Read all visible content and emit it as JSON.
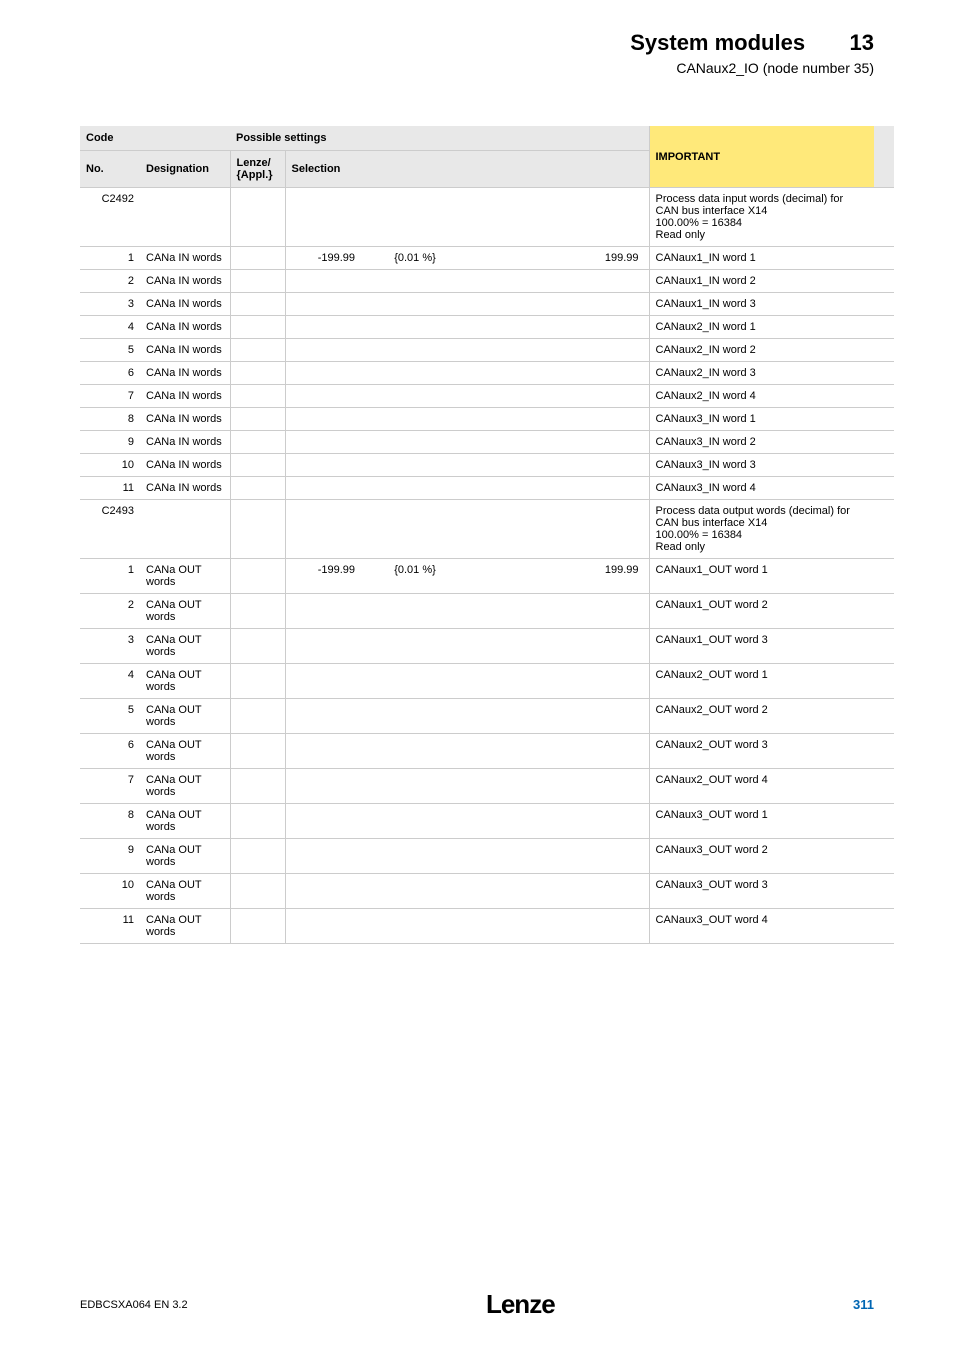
{
  "header": {
    "title": "System modules",
    "section_num": "13",
    "subtitle": "CANaux2_IO (node number 35)"
  },
  "table": {
    "headers": {
      "code": "Code",
      "no": "No.",
      "designation": "Designation",
      "possible": "Possible settings",
      "lenze": "Lenze/\n{Appl.}",
      "selection": "Selection",
      "important": "IMPORTANT"
    },
    "rows": [
      {
        "no": "C2492",
        "desig": "",
        "lenze": "",
        "sel": [
          "",
          "",
          ""
        ],
        "imp": "Process data input words (decimal) for CAN bus interface X14\n100.00% = 16384\nRead only",
        "heavy": true
      },
      {
        "no": "1",
        "desig": "CANa IN words",
        "lenze": "",
        "sel": [
          "-199.99",
          "{0.01 %}",
          "199.99"
        ],
        "imp": "CANaux1_IN word 1"
      },
      {
        "no": "2",
        "desig": "CANa IN words",
        "lenze": "",
        "sel": [
          "",
          "",
          ""
        ],
        "imp": "CANaux1_IN word 2"
      },
      {
        "no": "3",
        "desig": "CANa IN words",
        "lenze": "",
        "sel": [
          "",
          "",
          ""
        ],
        "imp": "CANaux1_IN word 3"
      },
      {
        "no": "4",
        "desig": "CANa IN words",
        "lenze": "",
        "sel": [
          "",
          "",
          ""
        ],
        "imp": "CANaux2_IN word 1"
      },
      {
        "no": "5",
        "desig": "CANa IN words",
        "lenze": "",
        "sel": [
          "",
          "",
          ""
        ],
        "imp": "CANaux2_IN word 2"
      },
      {
        "no": "6",
        "desig": "CANa IN words",
        "lenze": "",
        "sel": [
          "",
          "",
          ""
        ],
        "imp": "CANaux2_IN word 3"
      },
      {
        "no": "7",
        "desig": "CANa IN words",
        "lenze": "",
        "sel": [
          "",
          "",
          ""
        ],
        "imp": "CANaux2_IN word 4"
      },
      {
        "no": "8",
        "desig": "CANa IN words",
        "lenze": "",
        "sel": [
          "",
          "",
          ""
        ],
        "imp": "CANaux3_IN word 1"
      },
      {
        "no": "9",
        "desig": "CANa IN words",
        "lenze": "",
        "sel": [
          "",
          "",
          ""
        ],
        "imp": "CANaux3_IN word 2"
      },
      {
        "no": "10",
        "desig": "CANa IN words",
        "lenze": "",
        "sel": [
          "",
          "",
          ""
        ],
        "imp": "CANaux3_IN word 3"
      },
      {
        "no": "11",
        "desig": "CANa IN words",
        "lenze": "",
        "sel": [
          "",
          "",
          ""
        ],
        "imp": "CANaux3_IN word 4"
      },
      {
        "no": "C2493",
        "desig": "",
        "lenze": "",
        "sel": [
          "",
          "",
          ""
        ],
        "imp": "Process data output words (decimal) for CAN bus interface X14\n100.00% = 16384\nRead only",
        "heavy": true
      },
      {
        "no": "1",
        "desig": "CANa OUT words",
        "lenze": "",
        "sel": [
          "-199.99",
          "{0.01 %}",
          "199.99"
        ],
        "imp": "CANaux1_OUT word 1"
      },
      {
        "no": "2",
        "desig": "CANa OUT words",
        "lenze": "",
        "sel": [
          "",
          "",
          ""
        ],
        "imp": "CANaux1_OUT word 2"
      },
      {
        "no": "3",
        "desig": "CANa OUT words",
        "lenze": "",
        "sel": [
          "",
          "",
          ""
        ],
        "imp": "CANaux1_OUT word 3"
      },
      {
        "no": "4",
        "desig": "CANa OUT words",
        "lenze": "",
        "sel": [
          "",
          "",
          ""
        ],
        "imp": "CANaux2_OUT word 1"
      },
      {
        "no": "5",
        "desig": "CANa OUT words",
        "lenze": "",
        "sel": [
          "",
          "",
          ""
        ],
        "imp": "CANaux2_OUT word 2"
      },
      {
        "no": "6",
        "desig": "CANa OUT words",
        "lenze": "",
        "sel": [
          "",
          "",
          ""
        ],
        "imp": "CANaux2_OUT word 3"
      },
      {
        "no": "7",
        "desig": "CANa OUT words",
        "lenze": "",
        "sel": [
          "",
          "",
          ""
        ],
        "imp": "CANaux2_OUT word 4"
      },
      {
        "no": "8",
        "desig": "CANa OUT words",
        "lenze": "",
        "sel": [
          "",
          "",
          ""
        ],
        "imp": "CANaux3_OUT word 1"
      },
      {
        "no": "9",
        "desig": "CANa OUT words",
        "lenze": "",
        "sel": [
          "",
          "",
          ""
        ],
        "imp": "CANaux3_OUT word 2"
      },
      {
        "no": "10",
        "desig": "CANa OUT words",
        "lenze": "",
        "sel": [
          "",
          "",
          ""
        ],
        "imp": "CANaux3_OUT word 3"
      },
      {
        "no": "11",
        "desig": "CANa OUT words",
        "lenze": "",
        "sel": [
          "",
          "",
          ""
        ],
        "imp": "CANaux3_OUT word 4"
      }
    ]
  },
  "footer": {
    "left": "EDBCSXA064 EN 3.2",
    "logo": "Lenze",
    "page": "311"
  }
}
